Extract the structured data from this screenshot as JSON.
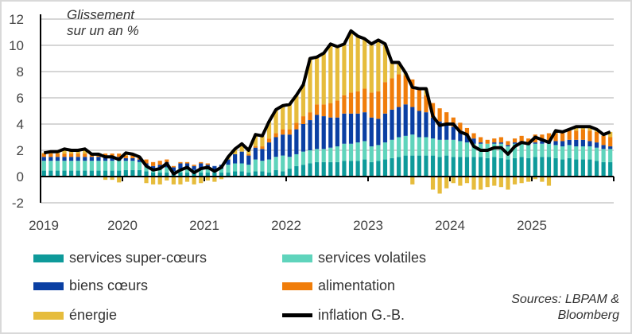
{
  "chart_data": {
    "type": "bar",
    "stacked": true,
    "title": "Glissement sur un an %",
    "title_lines": [
      "Glissement",
      "sur un an %"
    ],
    "ylim": [
      -2,
      12
    ],
    "yticks": [
      "-2",
      "0",
      "2",
      "4",
      "6",
      "8",
      "10",
      "12"
    ],
    "xticks": [
      "2019",
      "2020",
      "2021",
      "2022",
      "2023",
      "2024",
      "2025"
    ],
    "x_start": "2019-01",
    "x_end": "2025-12",
    "frequency": "monthly",
    "grid": true,
    "legend_position": "bottom",
    "series": [
      {
        "name": "services super-cœurs",
        "color": "#0e9a9a",
        "values": [
          0.45,
          0.45,
          0.45,
          0.45,
          0.45,
          0.45,
          0.45,
          0.45,
          0.45,
          0.45,
          0.45,
          0.45,
          0.5,
          0.5,
          0.5,
          0.4,
          0.3,
          0.3,
          0.3,
          0.3,
          0.3,
          0.3,
          0.3,
          0.3,
          0.3,
          0.3,
          0.3,
          0.3,
          0.4,
          0.4,
          0.3,
          0.4,
          0.4,
          0.3,
          0.5,
          0.4,
          0.6,
          0.8,
          0.9,
          1.0,
          1.1,
          1.1,
          1.1,
          1.1,
          1.2,
          1.2,
          1.2,
          1.3,
          1.1,
          1.2,
          1.3,
          1.4,
          1.5,
          1.6,
          1.6,
          1.6,
          1.6,
          1.6,
          1.5,
          1.6,
          1.5,
          1.5,
          1.5,
          1.5,
          1.5,
          1.4,
          1.5,
          1.4,
          1.3,
          1.4,
          1.5,
          1.4,
          1.5,
          1.5,
          1.5,
          1.4,
          1.3,
          1.4,
          1.3,
          1.3,
          1.3,
          1.2,
          1.1,
          1.1
        ]
      },
      {
        "name": "services volatiles",
        "color": "#5fd4bc",
        "values": [
          0.75,
          0.75,
          0.75,
          0.75,
          0.75,
          0.75,
          0.75,
          0.75,
          0.75,
          0.75,
          0.75,
          0.75,
          0.7,
          0.7,
          0.6,
          0.4,
          0.3,
          0.3,
          0.4,
          0.1,
          0.3,
          0.3,
          0.2,
          0.3,
          0.3,
          0.2,
          0.3,
          0.6,
          0.6,
          0.6,
          0.6,
          0.9,
          0.8,
          1.0,
          1.0,
          1.2,
          0.9,
          0.9,
          1.0,
          1.0,
          1.0,
          1.0,
          1.1,
          1.2,
          1.3,
          1.3,
          1.4,
          1.4,
          1.2,
          1.2,
          1.3,
          1.4,
          1.5,
          1.5,
          1.6,
          1.4,
          1.4,
          1.3,
          1.3,
          1.2,
          1.3,
          1.2,
          1.1,
          1.0,
          1.0,
          1.1,
          1.0,
          1.1,
          1.0,
          1.1,
          1.1,
          1.0,
          1.0,
          1.0,
          1.0,
          1.0,
          1.0,
          1.0,
          1.0,
          1.0,
          1.0,
          1.0,
          1.0,
          1.0
        ]
      },
      {
        "name": "biens cœurs",
        "color": "#0a3fa3",
        "values": [
          0.3,
          0.3,
          0.3,
          0.3,
          0.3,
          0.3,
          0.3,
          0.3,
          0.3,
          0.3,
          0.3,
          0.3,
          0.2,
          0.2,
          0.2,
          0.2,
          0.2,
          0.3,
          0.4,
          0.3,
          0.4,
          0.4,
          0.3,
          0.4,
          0.3,
          0.3,
          0.3,
          0.4,
          0.7,
          0.9,
          0.7,
          0.9,
          0.9,
          1.3,
          1.5,
          1.6,
          1.7,
          1.9,
          2.1,
          2.3,
          2.6,
          2.5,
          2.3,
          2.2,
          2.3,
          2.3,
          2.2,
          2.2,
          2.2,
          2.0,
          2.2,
          2.3,
          2.3,
          2.4,
          2.1,
          2.0,
          1.9,
          1.6,
          1.4,
          1.2,
          1.0,
          0.8,
          0.6,
          0.4,
          0.1,
          0.0,
          0.1,
          0.1,
          0.1,
          0.1,
          0.1,
          0.1,
          0.1,
          0.2,
          0.2,
          0.3,
          0.4,
          0.4,
          0.5,
          0.5,
          0.4,
          0.4,
          0.3,
          0.2
        ]
      },
      {
        "name": "alimentation",
        "color": "#f07d0a",
        "values": [
          0.25,
          0.25,
          0.25,
          0.25,
          0.25,
          0.25,
          0.25,
          0.25,
          0.25,
          0.25,
          0.25,
          0.25,
          0.2,
          0.2,
          0.2,
          0.3,
          0.3,
          0.3,
          0.2,
          0.1,
          0.1,
          0.1,
          0.1,
          0.1,
          0.1,
          0.0,
          0.0,
          0.0,
          0.0,
          0.0,
          0.1,
          0.1,
          0.2,
          0.3,
          0.3,
          0.4,
          0.4,
          0.5,
          0.6,
          0.6,
          0.8,
          0.9,
          1.1,
          1.3,
          1.4,
          1.6,
          1.7,
          1.8,
          1.9,
          2.1,
          2.4,
          2.4,
          2.5,
          2.2,
          2.1,
          1.7,
          1.3,
          1.1,
          1.0,
          0.9,
          0.7,
          0.6,
          0.5,
          0.4,
          0.4,
          0.3,
          0.3,
          0.4,
          0.3,
          0.3,
          0.4,
          0.4,
          0.6,
          0.5,
          0.6,
          0.6,
          0.6,
          0.7,
          0.7,
          0.8,
          0.8,
          0.8,
          0.7,
          0.7
        ]
      },
      {
        "name": "énergie",
        "color": "#e6bc3c",
        "values": [
          0.05,
          0.15,
          0.15,
          0.35,
          0.25,
          0.25,
          0.35,
          -0.05,
          -0.05,
          -0.25,
          -0.25,
          -0.45,
          0.2,
          0.1,
          0.0,
          -0.5,
          -0.6,
          -0.6,
          -0.3,
          -0.6,
          -0.6,
          -0.4,
          -0.6,
          -0.5,
          -0.3,
          -0.4,
          -0.2,
          0.2,
          0.4,
          0.6,
          0.3,
          0.9,
          0.8,
          1.3,
          1.8,
          1.8,
          1.9,
          2.1,
          2.4,
          4.1,
          3.6,
          3.9,
          4.5,
          4.1,
          3.9,
          4.7,
          4.2,
          3.8,
          3.7,
          3.9,
          2.9,
          1.2,
          0.9,
          0.2,
          -0.6,
          0.0,
          0.5,
          -1.0,
          -1.3,
          -0.9,
          -0.5,
          -0.7,
          -0.5,
          -1.0,
          -1.0,
          -0.8,
          -0.7,
          -0.8,
          -1.0,
          -0.6,
          -0.5,
          -0.4,
          -0.2,
          -0.4,
          -0.7,
          0.2,
          0.1,
          0.1,
          0.3,
          0.2,
          0.3,
          0.2,
          0.1,
          0.4
        ]
      }
    ],
    "line": {
      "name": "inflation G.-B.",
      "color": "#000000",
      "values": [
        1.8,
        1.9,
        1.9,
        2.1,
        2.0,
        2.0,
        2.1,
        1.7,
        1.7,
        1.5,
        1.5,
        1.3,
        1.8,
        1.7,
        1.5,
        0.8,
        0.5,
        0.6,
        1.0,
        0.2,
        0.5,
        0.7,
        0.3,
        0.6,
        0.7,
        0.4,
        0.7,
        1.5,
        2.1,
        2.5,
        2.0,
        3.2,
        3.1,
        4.2,
        5.1,
        5.4,
        5.5,
        6.2,
        7.0,
        9.0,
        9.1,
        9.4,
        10.1,
        9.9,
        10.1,
        11.1,
        10.7,
        10.5,
        10.1,
        10.4,
        10.1,
        8.7,
        8.7,
        7.9,
        6.8,
        6.7,
        6.7,
        4.6,
        3.9,
        4.0,
        4.0,
        3.4,
        3.2,
        2.3,
        2.0,
        2.0,
        2.2,
        2.2,
        1.7,
        2.3,
        2.6,
        2.5,
        3.0,
        2.8,
        2.6,
        3.5,
        3.4,
        3.6,
        3.8,
        3.8,
        3.8,
        3.6,
        3.2,
        3.4
      ]
    },
    "source": [
      "Sources: LBPAM &",
      "Bloomberg"
    ]
  }
}
